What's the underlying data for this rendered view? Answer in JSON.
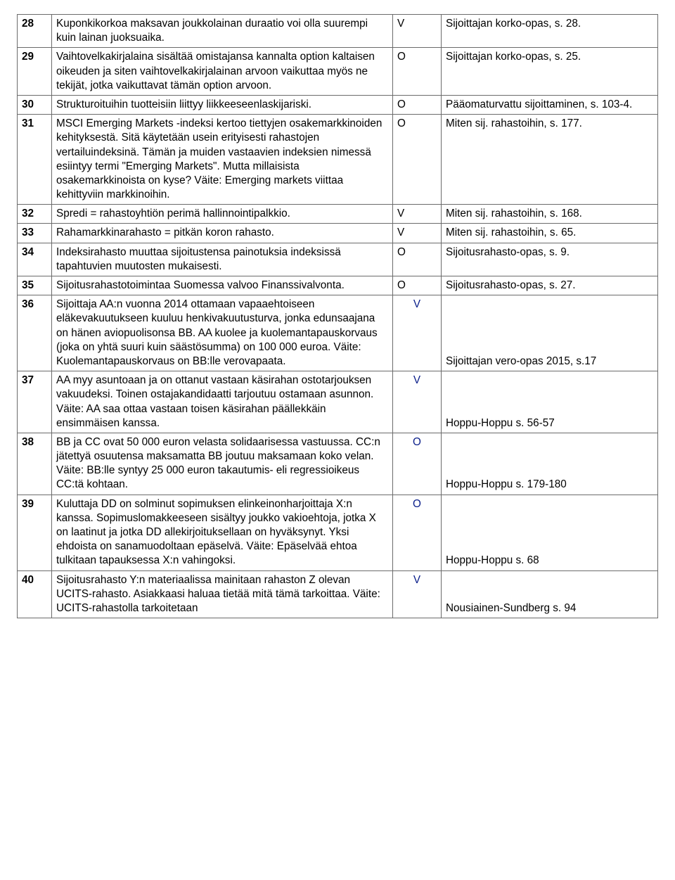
{
  "rows": [
    {
      "n": "28",
      "desc": "Kuponkikorkoa maksavan joukkolainan duraatio voi olla suurempi kuin lainan juoksuaika.",
      "ans": "V",
      "ans_style": "top",
      "ref": "Sijoittajan korko-opas, s. 28."
    },
    {
      "n": "29",
      "desc": "Vaihtovelkakirjalaina sisältää omistajansa kannalta option kaltaisen oikeuden ja siten vaihtovelkakirjalainan arvoon vaikuttaa myös ne tekijät, jotka vaikuttavat tämän option arvoon.",
      "ans": "O",
      "ans_style": "top",
      "ref": "Sijoittajan korko-opas, s. 25."
    },
    {
      "n": "30",
      "desc": "Strukturoituihin tuotteisiin liittyy liikkeeseenlaskijariski.",
      "ans": "O",
      "ans_style": "top",
      "ref": "Pääomaturvattu sijoittaminen, s. 103-4."
    },
    {
      "n": "31",
      "desc": "MSCI Emerging Markets -indeksi kertoo tiettyjen osakemarkkinoiden kehityksestä. Sitä käytetään usein erityisesti rahastojen vertailuindeksinä. Tämän ja muiden vastaavien indeksien nimessä esiintyy termi \"Emerging Markets\". Mutta millaisista osakemarkkinoista on kyse? Väite: Emerging markets viittaa kehittyviin markkinoihin.",
      "ans": "O",
      "ans_style": "top",
      "ref": "Miten sij. rahastoihin, s. 177."
    },
    {
      "n": "32",
      "desc": "Spredi = rahastoyhtiön perimä hallinnointipalkkio.",
      "ans": "V",
      "ans_style": "top",
      "ref": "Miten sij. rahastoihin, s. 168."
    },
    {
      "n": "33",
      "desc": "Rahamarkkinarahasto = pitkän koron rahasto.",
      "ans": "V",
      "ans_style": "top",
      "ref": "Miten sij. rahastoihin, s. 65."
    },
    {
      "n": "34",
      "desc": "Indeksirahasto muuttaa sijoitustensa painotuksia indeksissä tapahtuvien muutosten mukaisesti.",
      "ans": "O",
      "ans_style": "top",
      "ref": "Sijoitusrahasto-opas, s. 9."
    },
    {
      "n": "35",
      "desc": "Sijoitusrahastotoimintaa Suomessa valvoo Finanssivalvonta.",
      "ans": "O",
      "ans_style": "top",
      "ref": "Sijoitusrahasto-opas, s. 27."
    },
    {
      "n": "36",
      "desc": "Sijoittaja AA:n vuonna 2014 ottamaan vapaaehtoiseen eläkevakuutukseen kuuluu henkivakuutusturva, jonka edunsaajana on hänen aviopuolisonsa BB. AA kuolee ja kuolemantapauskorvaus (joka on yhtä suuri kuin säästösumma) on 100 000 euroa. Väite: Kuolemantapauskorvaus on BB:lle verovapaata.",
      "ans": "V",
      "ans_style": "bot",
      "ref": "Sijoittajan vero-opas 2015, s.17",
      "ref_style": "bot"
    },
    {
      "n": "37",
      "desc": "AA myy asuntoaan ja on ottanut vastaan käsirahan ostotarjouksen vakuudeksi. Toinen ostajakandidaatti tarjoutuu ostamaan asunnon. Väite: AA saa ottaa vastaan toisen käsirahan päällekkäin ensimmäisen kanssa.",
      "ans": "V",
      "ans_style": "bot",
      "ref": "Hoppu-Hoppu s. 56-57",
      "ref_style": "bot"
    },
    {
      "n": "38",
      "desc": "BB ja CC ovat 50 000 euron velasta solidaarisessa vastuussa. CC:n jätettyä osuutensa maksamatta BB joutuu maksamaan koko velan. Väite: BB:lle syntyy 25 000 euron takautumis- eli regressioikeus CC:tä kohtaan.",
      "ans": "O",
      "ans_style": "bot",
      "ref": "Hoppu-Hoppu s. 179-180",
      "ref_style": "bot"
    },
    {
      "n": "39",
      "desc": "Kuluttaja DD on solminut sopimuksen elinkeinonharjoittaja X:n kanssa. Sopimuslomakkeeseen sisältyy joukko vakioehtoja, jotka X on laatinut ja jotka DD allekirjoituksellaan on hyväksynyt. Yksi ehdoista on sanamuodoltaan epäselvä. Väite: Epäselvää ehtoa tulkitaan tapauksessa X:n vahingoksi.",
      "ans": "O",
      "ans_style": "bot",
      "ref": "Hoppu-Hoppu s. 68",
      "ref_style": "bot"
    },
    {
      "n": "40",
      "desc": "Sijoitusrahasto Y:n materiaalissa mainitaan rahaston Z olevan UCITS-rahasto. Asiakkaasi haluaa tietää mitä tämä tarkoittaa. Väite: UCITS-rahastolla tarkoitetaan",
      "ans": "V",
      "ans_style": "bot",
      "ref": "Nousiainen-Sundberg s. 94",
      "ref_style": "bot"
    }
  ]
}
